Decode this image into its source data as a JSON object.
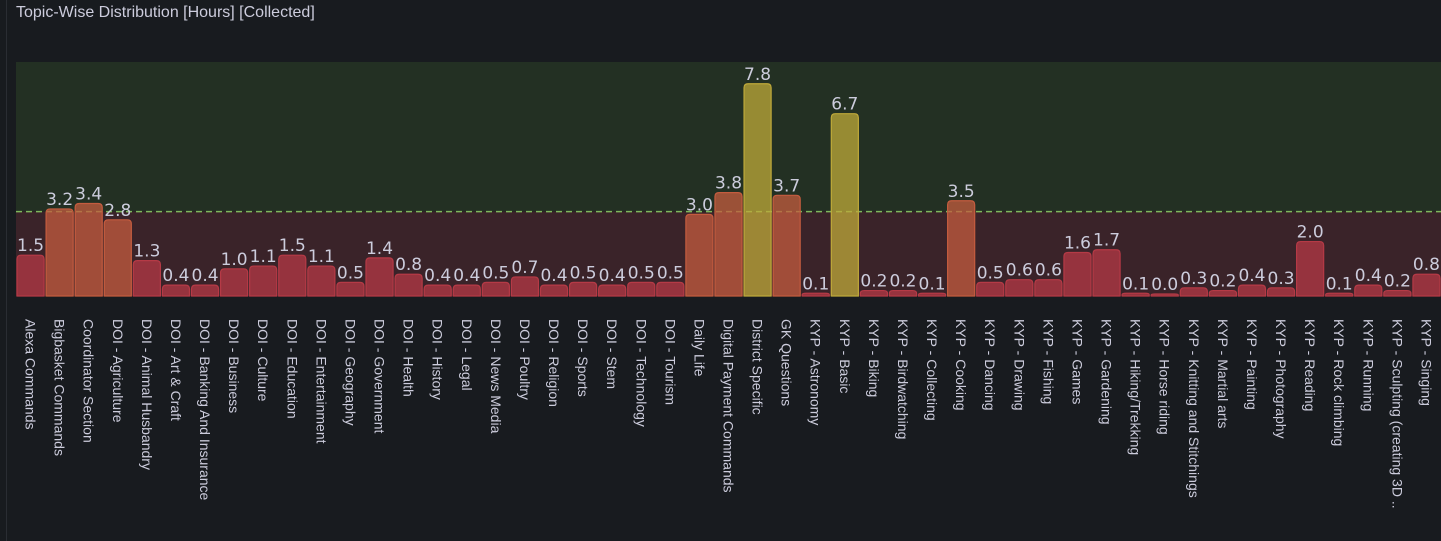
{
  "panel": {
    "title": "Topic-Wise Distribution [Hours] [Collected]"
  },
  "colors": {
    "background": "#181b1f",
    "upper_band": "#233023",
    "lower_band": "#3a2329",
    "threshold_line": "#7fb75c",
    "low": "#b53a46",
    "mid": "#c45c3f",
    "high": "#bfa93a"
  },
  "chart_data": {
    "type": "bar",
    "title": "Topic-Wise Distribution [Hours] [Collected]",
    "xlabel": "",
    "ylabel": "",
    "ylim": [
      0,
      8.6
    ],
    "threshold": 3.1,
    "categories": [
      "Alexa Commands",
      "Bigbasket Commands",
      "Coordinator Section",
      "DOI - Agriculture",
      "DOI - Animal Husbandry",
      "DOI - Art & Craft",
      "DOI - Banking And Insurance",
      "DOI - Business",
      "DOI - Culture",
      "DOI - Education",
      "DOI - Entertainment",
      "DOI - Geography",
      "DOI - Government",
      "DOI - Health",
      "DOI - History",
      "DOI - Legal",
      "DOI - News Media",
      "DOI - Poultry",
      "DOI - Religion",
      "DOI - Sports",
      "DOI - Stem",
      "DOI - Technology",
      "DOI - Tourism",
      "Daily Life",
      "Digital Payment Commands",
      "District Specific",
      "GK Questions",
      "KYP - Astronomy",
      "KYP - Basic",
      "KYP - Biking",
      "KYP - Birdwatching",
      "KYP - Collecting",
      "KYP - Cooking",
      "KYP - Dancing",
      "KYP - Drawing",
      "KYP - Fishing",
      "KYP - Games",
      "KYP - Gardening",
      "KYP - Hiking/Trekking",
      "KYP - Horse riding",
      "KYP - Knitting and Stitchings",
      "KYP - Martial arts",
      "KYP - Painting",
      "KYP - Photography",
      "KYP - Reading",
      "KYP - Rock climbing",
      "KYP - Running",
      "KYP - Sculpting (creating 3D ..",
      "KYP - Singing"
    ],
    "values": [
      1.5,
      3.2,
      3.4,
      2.8,
      1.3,
      0.4,
      0.4,
      1.0,
      1.1,
      1.5,
      1.1,
      0.5,
      1.4,
      0.8,
      0.4,
      0.4,
      0.5,
      0.7,
      0.4,
      0.5,
      0.4,
      0.5,
      0.5,
      3.0,
      3.8,
      7.8,
      3.7,
      0.1,
      6.7,
      0.2,
      0.2,
      0.1,
      3.5,
      0.5,
      0.6,
      0.6,
      1.6,
      1.7,
      0.1,
      0.0,
      0.3,
      0.2,
      0.4,
      0.3,
      2.0,
      0.1,
      0.4,
      0.2,
      0.8
    ],
    "labels": [
      "1.5",
      "3.2",
      "3.4",
      "2.8",
      "1.3",
      "0.4",
      "0.4",
      "1.0",
      "1.1",
      "1.5",
      "1.1",
      "0.5",
      "1.4",
      "0.8",
      "0.4",
      "0.4",
      "0.5",
      "0.7",
      "0.4",
      "0.5",
      "0.4",
      "0.5",
      "0.5",
      "3.0",
      "3.8",
      "7.8",
      "3.7",
      "0.1",
      "6.7",
      "0.2",
      "0.2",
      "0.1",
      "3.5",
      "0.5",
      "0.6",
      "0.6",
      "1.6",
      "1.7",
      "0.1",
      "0.0",
      "0.3",
      "0.2",
      "0.4",
      "0.3",
      "2.0",
      "0.1",
      "0.4",
      "0.2",
      "0.8"
    ]
  }
}
